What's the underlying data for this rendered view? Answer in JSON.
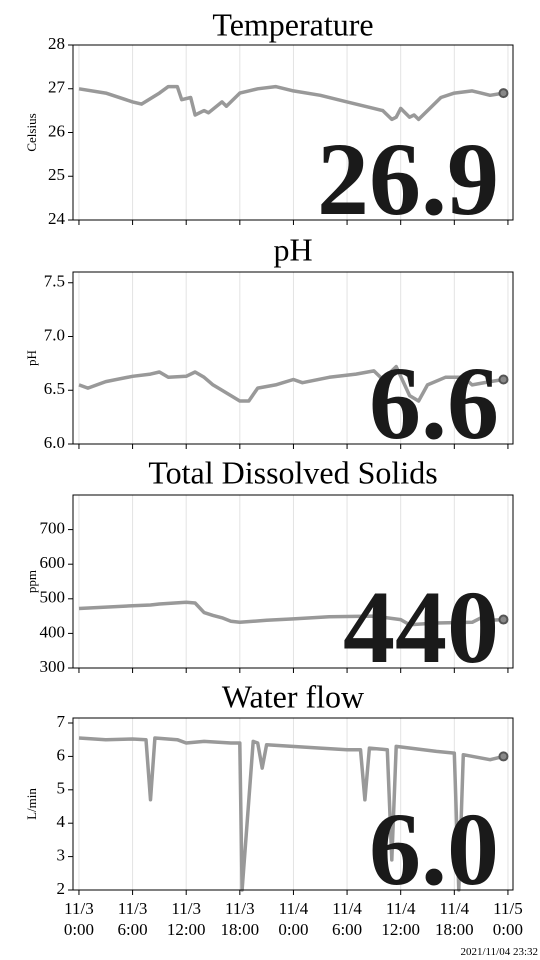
{
  "timestamp": "2021/11/04 23:32",
  "chart_data": [
    {
      "type": "line",
      "title": "Temperature",
      "ylabel": "Celsius",
      "annotation": "26.9",
      "color": "#999999",
      "x": [
        "11/3 0:00",
        "11/3 3:00",
        "11/3 6:00",
        "11/3 7:00",
        "11/3 9:00",
        "11/3 10:00",
        "11/3 11:00",
        "11/3 11:30",
        "11/3 12:30",
        "11/3 13:00",
        "11/3 14:00",
        "11/3 14:30",
        "11/3 16:00",
        "11/3 16:30",
        "11/3 18:00",
        "11/3 19:00",
        "11/3 20:00",
        "11/3 22:00",
        "11/4 0:00",
        "11/4 3:00",
        "11/4 6:00",
        "11/4 9:00",
        "11/4 10:00",
        "11/4 11:00",
        "11/4 11:30",
        "11/4 12:00",
        "11/4 13:00",
        "11/4 13:30",
        "11/4 14:00",
        "11/4 15:30",
        "11/4 16:30",
        "11/4 18:00",
        "11/4 20:00",
        "11/4 21:00",
        "11/4 22:00",
        "11/4 23:30"
      ],
      "values": [
        27.0,
        26.9,
        26.7,
        26.65,
        26.9,
        27.05,
        27.05,
        26.75,
        26.8,
        26.4,
        26.5,
        26.45,
        26.7,
        26.6,
        26.9,
        26.95,
        27.0,
        27.05,
        26.95,
        26.85,
        26.7,
        26.55,
        26.5,
        26.3,
        26.35,
        26.55,
        26.35,
        26.4,
        26.3,
        26.6,
        26.8,
        26.9,
        26.95,
        26.9,
        26.85,
        26.9
      ],
      "xlim": [
        "11/2 23:20",
        "11/5 0:34"
      ],
      "xticks": [
        "11/3 0:00",
        "11/3 6:00",
        "11/3 12:00",
        "11/3 18:00",
        "11/4 0:00",
        "11/4 6:00",
        "11/4 12:00",
        "11/4 18:00",
        "11/5 0:00"
      ],
      "ylim": [
        24,
        28
      ],
      "yticks": [
        24,
        25,
        26,
        27,
        28
      ],
      "grid": "x"
    },
    {
      "type": "line",
      "title": "pH",
      "ylabel": "pH",
      "annotation": "6.6",
      "color": "#999999",
      "x": [
        "11/3 0:00",
        "11/3 1:00",
        "11/3 3:00",
        "11/3 6:00",
        "11/3 8:00",
        "11/3 9:00",
        "11/3 10:00",
        "11/3 12:00",
        "11/3 13:00",
        "11/3 14:00",
        "11/3 15:00",
        "11/3 16:00",
        "11/3 17:00",
        "11/3 18:00",
        "11/3 19:00",
        "11/3 20:00",
        "11/3 22:00",
        "11/4 0:00",
        "11/4 1:00",
        "11/4 4:00",
        "11/4 7:00",
        "11/4 9:00",
        "11/4 10:00",
        "11/4 11:30",
        "11/4 13:00",
        "11/4 14:00",
        "11/4 15:00",
        "11/4 17:00",
        "11/4 19:00",
        "11/4 20:00",
        "11/4 22:00",
        "11/4 23:30"
      ],
      "values": [
        6.55,
        6.52,
        6.58,
        6.63,
        6.65,
        6.67,
        6.62,
        6.63,
        6.67,
        6.62,
        6.55,
        6.5,
        6.45,
        6.4,
        6.4,
        6.52,
        6.55,
        6.6,
        6.57,
        6.62,
        6.65,
        6.68,
        6.6,
        6.72,
        6.45,
        6.4,
        6.55,
        6.62,
        6.62,
        6.55,
        6.58,
        6.6
      ],
      "xlim": [
        "11/2 23:20",
        "11/5 0:34"
      ],
      "xticks": [
        "11/3 0:00",
        "11/3 6:00",
        "11/3 12:00",
        "11/3 18:00",
        "11/4 0:00",
        "11/4 6:00",
        "11/4 12:00",
        "11/4 18:00",
        "11/5 0:00"
      ],
      "ylim": [
        6.0,
        7.6
      ],
      "yticks": [
        {
          "value": 6,
          "label": "6.0"
        },
        6.5,
        {
          "value": 7,
          "label": "7.0"
        },
        7.5
      ],
      "grid": "x"
    },
    {
      "type": "line",
      "title": "Total Dissolved Solids",
      "ylabel": "ppm",
      "annotation": "440",
      "color": "#999999",
      "x": [
        "11/3 0:00",
        "11/3 6:00",
        "11/3 8:00",
        "11/3 9:00",
        "11/3 12:00",
        "11/3 13:00",
        "11/3 14:00",
        "11/3 15:00",
        "11/3 16:00",
        "11/3 17:00",
        "11/3 18:00",
        "11/3 21:00",
        "11/4 0:00",
        "11/4 4:00",
        "11/4 9:00",
        "11/4 12:00",
        "11/4 13:00",
        "11/4 16:00",
        "11/4 20:00",
        "11/4 21:00",
        "11/4 22:00",
        "11/4 23:30"
      ],
      "values": [
        472,
        480,
        482,
        485,
        490,
        488,
        460,
        452,
        445,
        435,
        432,
        438,
        442,
        448,
        450,
        440,
        425,
        430,
        432,
        445,
        438,
        440
      ],
      "xlim": [
        "11/2 23:20",
        "11/5 0:34"
      ],
      "xticks": [
        "11/3 0:00",
        "11/3 6:00",
        "11/3 12:00",
        "11/3 18:00",
        "11/4 0:00",
        "11/4 6:00",
        "11/4 12:00",
        "11/4 18:00",
        "11/5 0:00"
      ],
      "ylim": [
        300,
        800
      ],
      "yticks": [
        300,
        400,
        500,
        600,
        700
      ],
      "grid": "x"
    },
    {
      "type": "line",
      "title": "Water flow",
      "ylabel": "L/min",
      "annotation": "6.0",
      "color": "#999999",
      "x": [
        "11/3 0:00",
        "11/3 3:00",
        "11/3 6:00",
        "11/3 7:30",
        "11/3 8:00",
        "11/3 8:30",
        "11/3 11:00",
        "11/3 12:00",
        "11/3 14:00",
        "11/3 17:00",
        "11/3 18:00",
        "11/3 18:15",
        "11/3 19:30",
        "11/3 20:00",
        "11/3 20:30",
        "11/3 21:00",
        "11/4 3:00",
        "11/4 6:00",
        "11/4 7:30",
        "11/4 8:00",
        "11/4 8:30",
        "11/4 10:30",
        "11/4 11:00",
        "11/4 11:30",
        "11/4 16:00",
        "11/4 18:00",
        "11/4 18:30",
        "11/4 19:00",
        "11/4 22:00",
        "11/4 23:30"
      ],
      "values": [
        6.55,
        6.5,
        6.52,
        6.5,
        4.7,
        6.55,
        6.5,
        6.4,
        6.45,
        6.4,
        6.4,
        2.0,
        6.45,
        6.4,
        5.65,
        6.35,
        6.25,
        6.2,
        6.2,
        4.7,
        6.25,
        6.2,
        2.9,
        6.3,
        6.15,
        6.1,
        2.0,
        6.05,
        5.9,
        6.0
      ],
      "xlim": [
        "11/2 23:20",
        "11/5 0:34"
      ],
      "xticks": [
        "11/3 0:00",
        "11/3 6:00",
        "11/3 12:00",
        "11/3 18:00",
        "11/4 0:00",
        "11/4 6:00",
        "11/4 12:00",
        "11/4 18:00",
        "11/5 0:00"
      ],
      "ylim": [
        2,
        7.15
      ],
      "yticks": [
        2,
        3,
        4,
        5,
        6,
        7
      ],
      "grid": "x"
    }
  ]
}
